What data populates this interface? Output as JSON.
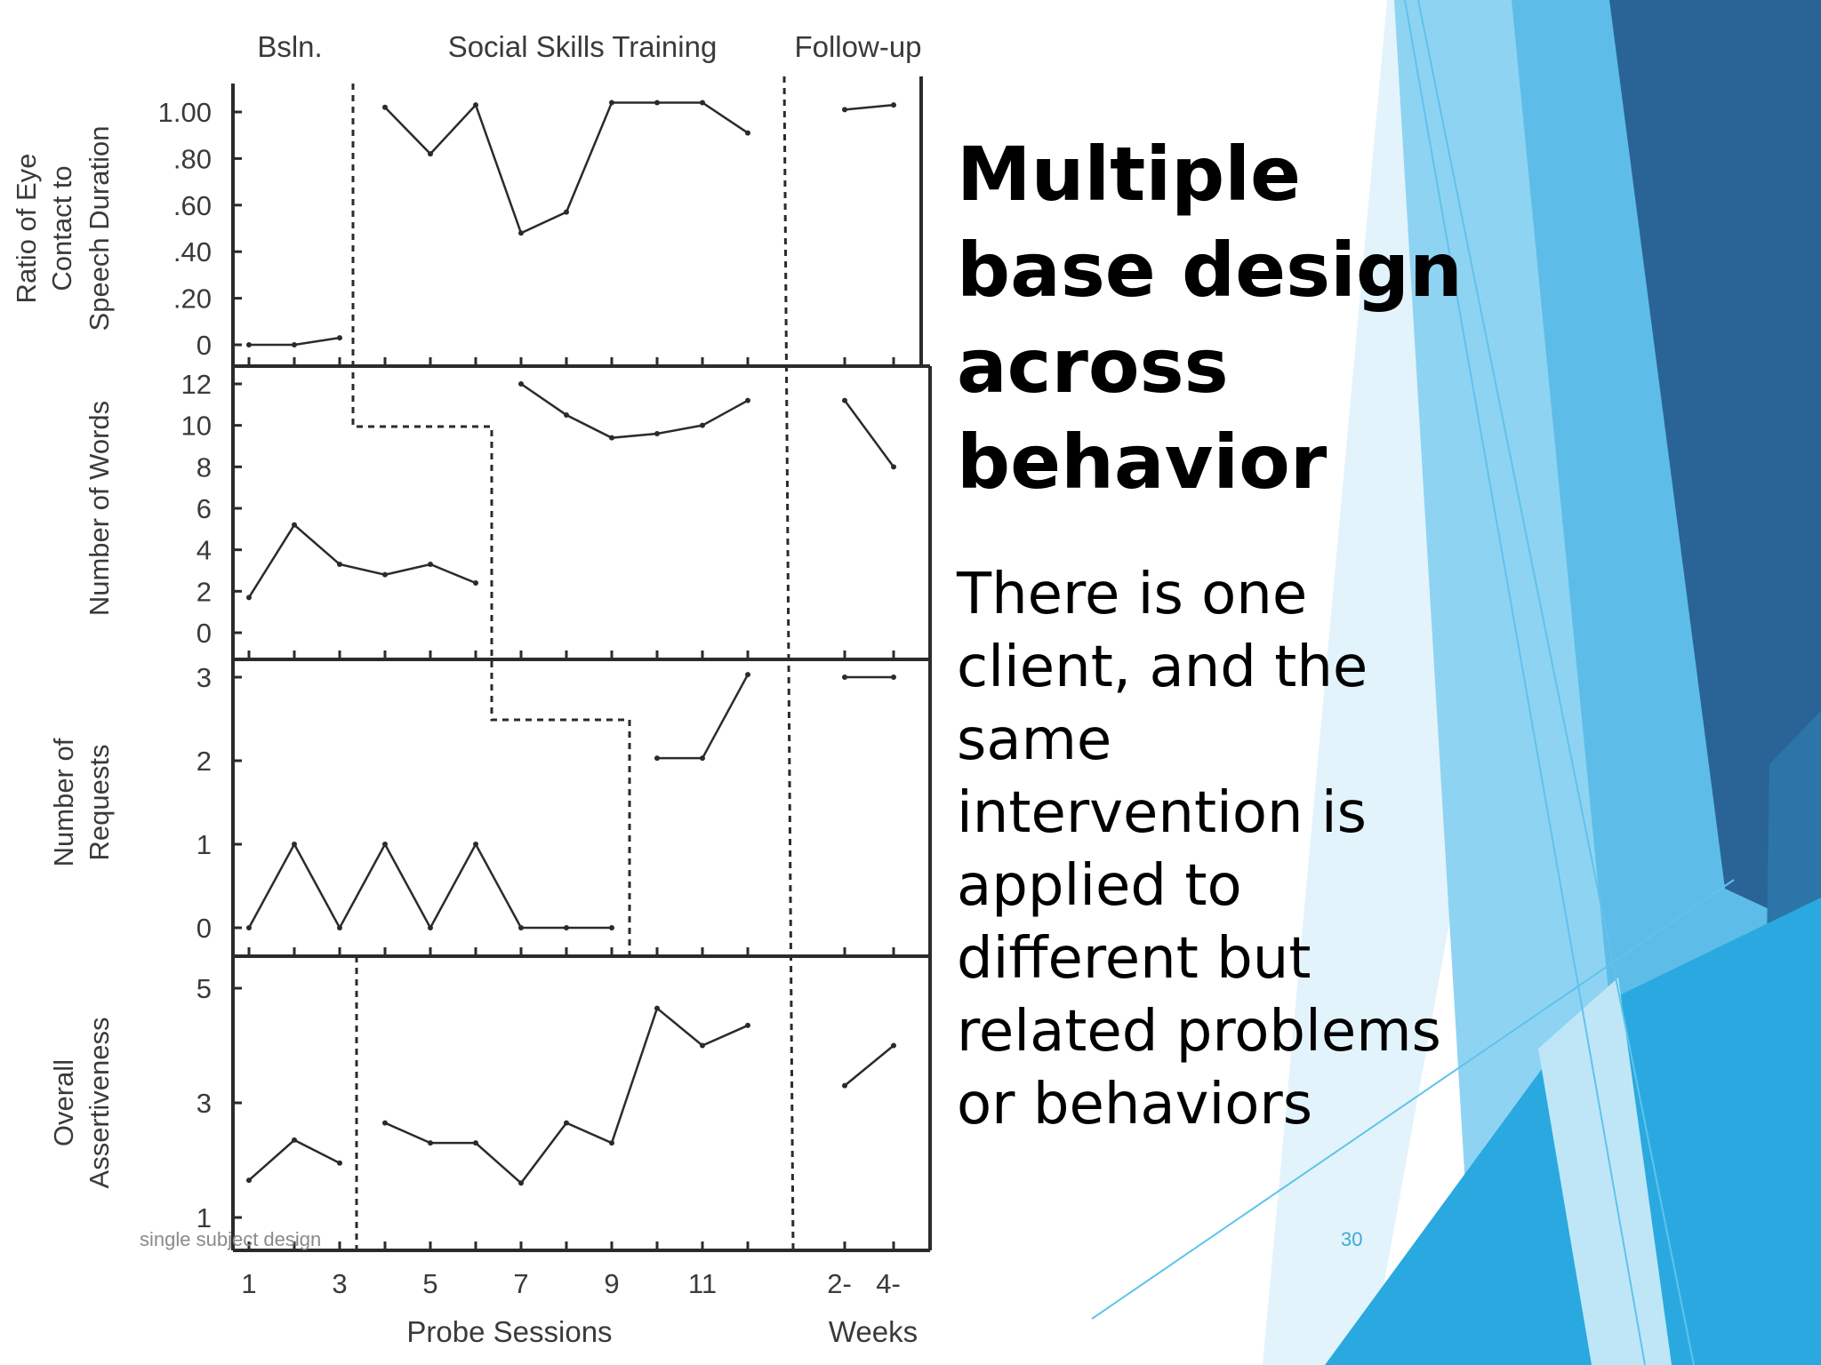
{
  "slide": {
    "title": "Multiple base design across behavior",
    "body": "There is one client, and the same intervention is applied to different but related problems or behaviors",
    "footer": "single subject design",
    "slide_number": "30",
    "colors": {
      "accent_light": "#6cc9ee",
      "accent_mid": "#2aa6dc",
      "accent_dark": "#2a6496"
    }
  },
  "chart_data": {
    "type": "line",
    "phase_labels": [
      "Bsln.",
      "Social Skills Training",
      "Follow-up"
    ],
    "xlabel": "Probe Sessions",
    "xlabel_followup": "Weeks",
    "x_ticks": [
      "1",
      "3",
      "5",
      "7",
      "9",
      "11"
    ],
    "followup_ticks": [
      "2-",
      "4-"
    ],
    "panels": [
      {
        "ylabel": [
          "Ratio of Eye",
          "Contact to",
          "Speech Duration"
        ],
        "ylim": [
          0,
          1.0
        ],
        "y_ticks": [
          "1.00",
          ".80",
          ".60",
          ".40",
          ".20",
          "0"
        ],
        "baseline": {
          "x": [
            1,
            2,
            3
          ],
          "y": [
            0,
            0,
            0.03
          ]
        },
        "training": {
          "x": [
            4,
            5,
            6,
            7,
            8,
            9,
            10,
            11,
            12
          ],
          "y": [
            1.02,
            0.82,
            1.03,
            0.48,
            0.57,
            1.04,
            1.04,
            1.04,
            0.91
          ]
        },
        "followup": {
          "x": [
            "2-",
            "4-"
          ],
          "y": [
            1.01,
            1.03
          ]
        }
      },
      {
        "ylabel": [
          "Number of Words"
        ],
        "ylim": [
          0,
          12
        ],
        "y_ticks": [
          "12",
          "10",
          "8",
          "6",
          "4",
          "2",
          "0"
        ],
        "baseline": {
          "x": [
            1,
            2,
            3,
            4,
            5,
            6
          ],
          "y": [
            1.7,
            5.2,
            3.3,
            2.8,
            3.3,
            2.4
          ]
        },
        "training": {
          "x": [
            7,
            8,
            9,
            10,
            11,
            12
          ],
          "y": [
            12,
            10.5,
            9.4,
            9.6,
            10,
            11.2
          ]
        },
        "followup": {
          "x": [
            "2-",
            "4-"
          ],
          "y": [
            11.2,
            8
          ]
        }
      },
      {
        "ylabel": [
          "Number of",
          "Requests"
        ],
        "ylim": [
          0,
          3
        ],
        "y_ticks": [
          "3",
          "2",
          "1",
          "0"
        ],
        "baseline": {
          "x": [
            1,
            2,
            3,
            4,
            5,
            6,
            7,
            8,
            9
          ],
          "y": [
            0,
            1,
            0,
            1,
            0,
            1,
            0,
            0,
            0
          ]
        },
        "training": {
          "x": [
            10,
            11,
            12
          ],
          "y": [
            2.03,
            2.03,
            3.03
          ]
        },
        "followup": {
          "x": [
            "2-",
            "4-"
          ],
          "y": [
            3,
            3
          ]
        }
      },
      {
        "ylabel": [
          "Overall",
          "Assertiveness"
        ],
        "ylim": [
          1,
          5
        ],
        "y_ticks": [
          "5",
          "3",
          "1"
        ],
        "baseline": {
          "x": [
            1,
            2,
            3
          ],
          "y": [
            1.65,
            2.35,
            1.95
          ]
        },
        "training": {
          "x": [
            4,
            5,
            6,
            7,
            8,
            9,
            10,
            11,
            12
          ],
          "y": [
            2.65,
            2.3,
            2.3,
            1.6,
            2.65,
            2.3,
            4.65,
            4.0,
            4.35
          ]
        },
        "followup": {
          "x": [
            "2-",
            "4-"
          ],
          "y": [
            3.3,
            4.0
          ]
        }
      }
    ]
  }
}
